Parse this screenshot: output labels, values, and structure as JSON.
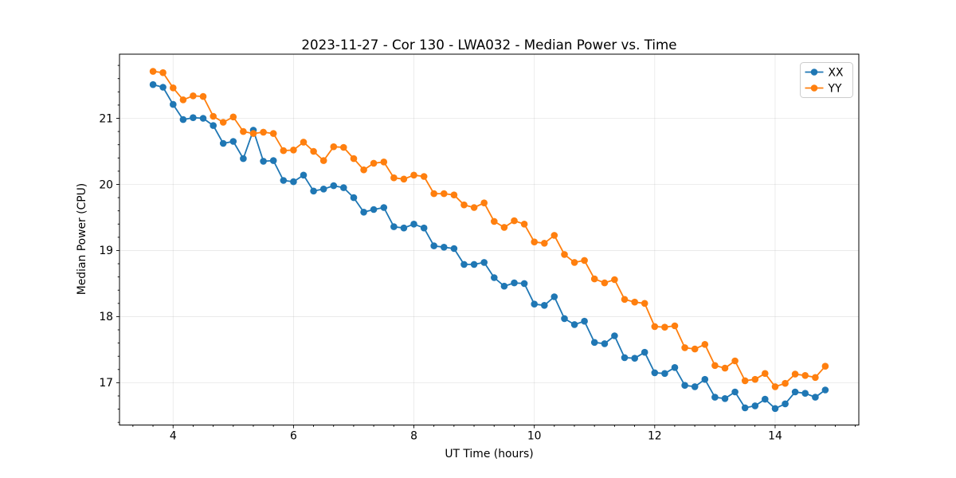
{
  "figure": {
    "title": "2023-11-27 - Cor 130 - LWA032 - Median Power vs. Time",
    "xlabel": "UT Time (hours)",
    "ylabel": "Median Power (CPU)"
  },
  "legend": {
    "position": "upper right",
    "entries": [
      {
        "label": "XX",
        "color": "#1f77b4"
      },
      {
        "label": "YY",
        "color": "#ff7f0e"
      }
    ]
  },
  "chart_data": {
    "type": "line",
    "title": "2023-11-27 - Cor 130 - LWA032 - Median Power vs. Time",
    "xlabel": "UT Time (hours)",
    "ylabel": "Median Power (CPU)",
    "grid": true,
    "legend_position": "upper right",
    "marker": "circle",
    "xlim": [
      3.11,
      15.39
    ],
    "ylim": [
      16.36,
      21.97
    ],
    "xticks": [
      4,
      6,
      8,
      10,
      12,
      14
    ],
    "yticks": [
      17,
      18,
      19,
      20,
      21
    ],
    "x_minor_step": 0.3333,
    "y_minor_step": 0.2,
    "x": [
      3.667,
      3.833,
      4,
      4.167,
      4.333,
      4.5,
      4.667,
      4.833,
      5,
      5.167,
      5.333,
      5.5,
      5.667,
      5.833,
      6,
      6.167,
      6.333,
      6.5,
      6.667,
      6.833,
      7,
      7.167,
      7.333,
      7.5,
      7.667,
      7.833,
      8,
      8.167,
      8.333,
      8.5,
      8.667,
      8.833,
      9,
      9.167,
      9.333,
      9.5,
      9.667,
      9.833,
      10,
      10.167,
      10.333,
      10.5,
      10.667,
      10.833,
      11,
      11.167,
      11.333,
      11.5,
      11.667,
      11.833,
      12,
      12.167,
      12.333,
      12.5,
      12.667,
      12.833,
      13,
      13.167,
      13.333,
      13.5,
      13.667,
      13.833,
      14,
      14.167,
      14.333,
      14.5,
      14.667,
      14.833
    ],
    "series": [
      {
        "name": "XX",
        "color": "#1f77b4",
        "values": [
          21.51,
          21.47,
          21.21,
          20.98,
          21.01,
          21,
          20.89,
          20.62,
          20.65,
          20.39,
          20.82,
          20.35,
          20.36,
          20.06,
          20.04,
          20.14,
          19.9,
          19.93,
          19.98,
          19.95,
          19.8,
          19.58,
          19.62,
          19.65,
          19.36,
          19.34,
          19.4,
          19.34,
          19.07,
          19.05,
          19.03,
          18.79,
          18.79,
          18.82,
          18.59,
          18.46,
          18.51,
          18.5,
          18.19,
          18.17,
          18.3,
          17.97,
          17.88,
          17.93,
          17.61,
          17.59,
          17.71,
          17.38,
          17.37,
          17.46,
          17.15,
          17.14,
          17.23,
          16.96,
          16.94,
          17.05,
          16.78,
          16.76,
          16.86,
          16.62,
          16.65,
          16.75,
          16.61,
          16.68,
          16.86,
          16.84,
          16.78,
          16.89
        ]
      },
      {
        "name": "YY",
        "color": "#ff7f0e",
        "values": [
          21.71,
          21.69,
          21.46,
          21.28,
          21.34,
          21.33,
          21.03,
          20.94,
          21.02,
          20.8,
          20.77,
          20.79,
          20.77,
          20.51,
          20.52,
          20.64,
          20.5,
          20.36,
          20.57,
          20.56,
          20.39,
          20.22,
          20.32,
          20.34,
          20.1,
          20.08,
          20.14,
          20.12,
          19.86,
          19.86,
          19.84,
          19.69,
          19.65,
          19.72,
          19.44,
          19.35,
          19.45,
          19.4,
          19.13,
          19.11,
          19.23,
          18.94,
          18.82,
          18.85,
          18.57,
          18.51,
          18.56,
          18.26,
          18.22,
          18.2,
          17.85,
          17.84,
          17.86,
          17.53,
          17.51,
          17.58,
          17.26,
          17.22,
          17.33,
          17.03,
          17.05,
          17.14,
          16.94,
          16.99,
          17.13,
          17.11,
          17.08,
          17.25
        ]
      }
    ]
  }
}
